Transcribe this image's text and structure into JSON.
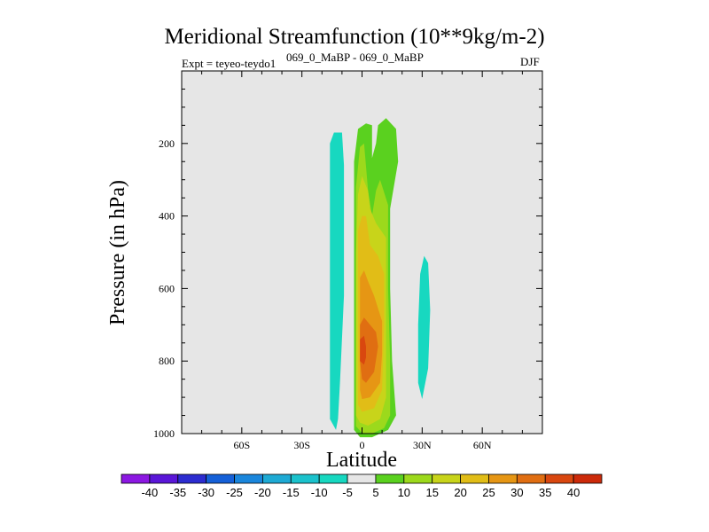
{
  "chart_data": {
    "type": "heatmap",
    "title": "Meridional Streamfunction (10**9kg/m-2)",
    "subtitle_left": "Expt = teyeo-teydo1",
    "subtitle_center": "069_0_MaBP - 069_0_MaBP",
    "subtitle_right": "DJF",
    "xlabel": "Latitude",
    "ylabel": "Pressure (in hPa)",
    "xlim": [
      -90,
      90
    ],
    "ylim": [
      1000,
      0
    ],
    "x_ticks": [
      {
        "value": -60,
        "label": "60S"
      },
      {
        "value": -30,
        "label": "30S"
      },
      {
        "value": 0,
        "label": "0"
      },
      {
        "value": 30,
        "label": "30N"
      },
      {
        "value": 60,
        "label": "60N"
      }
    ],
    "y_ticks": [
      {
        "value": 200,
        "label": "200"
      },
      {
        "value": 400,
        "label": "400"
      },
      {
        "value": 600,
        "label": "600"
      },
      {
        "value": 800,
        "label": "800"
      },
      {
        "value": 1000,
        "label": "1000"
      }
    ],
    "colorbar": {
      "levels": [
        "-40",
        "-35",
        "-30",
        "-25",
        "-20",
        "-15",
        "-10",
        "-5",
        "5",
        "10",
        "15",
        "20",
        "25",
        "30",
        "35",
        "40"
      ],
      "colors": [
        "#8c18e2",
        "#5a16d8",
        "#2c2cd0",
        "#1560d8",
        "#1a86dc",
        "#1eaad4",
        "#1bc2cc",
        "#17d8c0",
        "#e6e6e6",
        "#5ad11f",
        "#9cd91c",
        "#c8d41a",
        "#e1bd17",
        "#e69614",
        "#e06e12",
        "#d9470f",
        "#cc2a0a"
      ]
    },
    "plot_background": "#e6e6e6",
    "contours": [
      {
        "level": -5,
        "color": "#17d8c0",
        "points": [
          [
            -14,
            170
          ],
          [
            -10,
            170
          ],
          [
            -9,
            260
          ],
          [
            -9,
            400
          ],
          [
            -9,
            620
          ],
          [
            -11,
            860
          ],
          [
            -12,
            960
          ],
          [
            -13,
            990
          ],
          [
            -16,
            960
          ],
          [
            -16,
            700
          ],
          [
            -16,
            400
          ],
          [
            -16,
            200
          ]
        ]
      },
      {
        "level": -5,
        "color": "#17d8c0",
        "points": [
          [
            31,
            510
          ],
          [
            33,
            530
          ],
          [
            34,
            660
          ],
          [
            33,
            820
          ],
          [
            30,
            905
          ],
          [
            28,
            860
          ],
          [
            28,
            700
          ],
          [
            29,
            560
          ]
        ]
      },
      {
        "level": 5,
        "color": "#5ad11f",
        "points": [
          [
            -4,
            250
          ],
          [
            -2,
            160
          ],
          [
            2,
            145
          ],
          [
            5,
            150
          ],
          [
            5,
            240
          ],
          [
            7,
            200
          ],
          [
            8,
            150
          ],
          [
            12,
            130
          ],
          [
            17,
            160
          ],
          [
            18,
            250
          ],
          [
            14,
            380
          ],
          [
            14,
            600
          ],
          [
            15,
            800
          ],
          [
            17,
            950
          ],
          [
            13,
            990
          ],
          [
            5,
            1010
          ],
          [
            -1,
            1010
          ],
          [
            -4,
            990
          ],
          [
            -4,
            800
          ],
          [
            -4,
            600
          ],
          [
            -4,
            400
          ]
        ]
      },
      {
        "level": 10,
        "color": "#9cd91c",
        "points": [
          [
            -3,
            320
          ],
          [
            -1,
            210
          ],
          [
            1,
            200
          ],
          [
            3,
            330
          ],
          [
            5,
            400
          ],
          [
            7,
            330
          ],
          [
            9,
            300
          ],
          [
            13,
            370
          ],
          [
            13,
            600
          ],
          [
            14,
            800
          ],
          [
            14,
            950
          ],
          [
            11,
            985
          ],
          [
            5,
            1000
          ],
          [
            0,
            998
          ],
          [
            -3,
            980
          ],
          [
            -3,
            800
          ],
          [
            -3,
            600
          ]
        ]
      },
      {
        "level": 15,
        "color": "#c8d41a",
        "points": [
          [
            -2,
            340
          ],
          [
            0,
            290
          ],
          [
            3,
            330
          ],
          [
            4,
            380
          ],
          [
            7,
            420
          ],
          [
            12,
            460
          ],
          [
            12,
            650
          ],
          [
            12,
            900
          ],
          [
            9,
            960
          ],
          [
            3,
            978
          ],
          [
            -1,
            970
          ],
          [
            -3,
            950
          ],
          [
            -3,
            700
          ],
          [
            -3,
            500
          ]
        ]
      },
      {
        "level": 20,
        "color": "#e1bd17",
        "points": [
          [
            -2,
            440
          ],
          [
            0,
            400
          ],
          [
            2,
            400
          ],
          [
            4,
            480
          ],
          [
            8,
            510
          ],
          [
            11,
            560
          ],
          [
            11,
            700
          ],
          [
            10,
            880
          ],
          [
            6,
            930
          ],
          [
            0,
            940
          ],
          [
            -2,
            920
          ],
          [
            -2,
            700
          ]
        ]
      },
      {
        "level": 25,
        "color": "#e69614",
        "points": [
          [
            -1,
            570
          ],
          [
            1,
            550
          ],
          [
            3,
            580
          ],
          [
            6,
            620
          ],
          [
            10,
            690
          ],
          [
            10,
            780
          ],
          [
            9,
            860
          ],
          [
            4,
            900
          ],
          [
            0,
            905
          ],
          [
            -1,
            880
          ],
          [
            -1,
            700
          ]
        ]
      },
      {
        "level": 30,
        "color": "#e06e12",
        "points": [
          [
            -1,
            700
          ],
          [
            1,
            680
          ],
          [
            4,
            700
          ],
          [
            7,
            720
          ],
          [
            8,
            760
          ],
          [
            6,
            830
          ],
          [
            2,
            860
          ],
          [
            0,
            850
          ],
          [
            -1,
            800
          ]
        ]
      },
      {
        "level": 35,
        "color": "#d9470f",
        "points": [
          [
            -1,
            740
          ],
          [
            1,
            730
          ],
          [
            2,
            760
          ],
          [
            2,
            790
          ],
          [
            1,
            810
          ],
          [
            -1,
            800
          ],
          [
            -1,
            770
          ]
        ]
      }
    ]
  }
}
